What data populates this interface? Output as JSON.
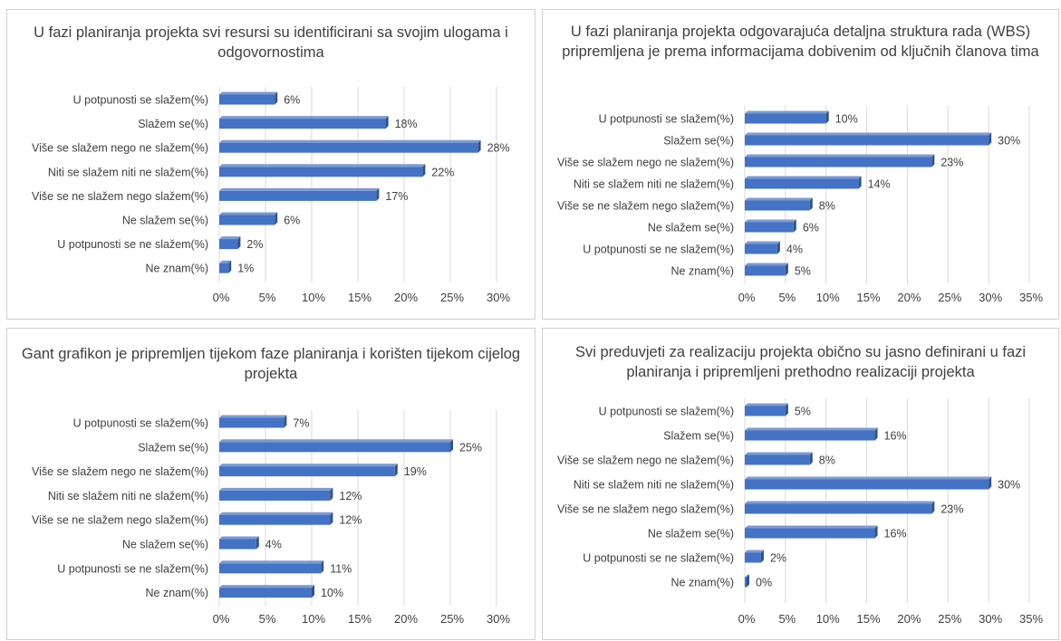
{
  "colors": {
    "bar_front": "#4472c4",
    "bar_top": "#7b9bd6",
    "bar_side": "#2f528f",
    "grid": "#d9d9d9",
    "text": "#404040"
  },
  "chart_data": [
    {
      "type": "bar",
      "orientation": "horizontal",
      "title": "U fazi planiranja projekta svi resursi su identificirani sa svojim ulogama i odgovornostima",
      "categories": [
        "U potpunosti se slažem(%)",
        "Slažem se(%)",
        "Više se slažem nego ne slažem(%)",
        "Niti se slažem niti ne slažem(%)",
        "Više se ne slažem nego slažem(%)",
        "Ne slažem se(%)",
        "U potpunosti se ne slažem(%)",
        "Ne znam(%)"
      ],
      "values": [
        6,
        18,
        28,
        22,
        17,
        6,
        2,
        1
      ],
      "value_labels": [
        "6%",
        "18%",
        "28%",
        "22%",
        "17%",
        "6%",
        "2%",
        "1%"
      ],
      "xlim": [
        0,
        30
      ],
      "ticks": [
        "0%",
        "5%",
        "10%",
        "15%",
        "20%",
        "25%",
        "30%"
      ],
      "grid": true
    },
    {
      "type": "bar",
      "orientation": "horizontal",
      "title": "U fazi planiranja projekta odgovarajuća detaljna struktura rada (WBS) pripremljena je prema informacijama dobivenim od ključnih članova tima",
      "categories": [
        "U potpunosti se slažem(%)",
        "Slažem se(%)",
        "Više se slažem nego ne slažem(%)",
        "Niti se slažem niti ne slažem(%)",
        "Više se ne slažem nego slažem(%)",
        "Ne slažem se(%)",
        "U potpunosti se ne slažem(%)",
        "Ne znam(%)"
      ],
      "values": [
        10,
        30,
        23,
        14,
        8,
        6,
        4,
        5
      ],
      "value_labels": [
        "10%",
        "30%",
        "23%",
        "14%",
        "8%",
        "6%",
        "4%",
        "5%"
      ],
      "xlim": [
        0,
        35
      ],
      "ticks": [
        "0%",
        "5%",
        "10%",
        "15%",
        "20%",
        "25%",
        "30%",
        "35%"
      ],
      "grid": true
    },
    {
      "type": "bar",
      "orientation": "horizontal",
      "title": "Gant grafikon je pripremljen tijekom faze planiranja i korišten tijekom cijelog projekta",
      "categories": [
        "U potpunosti se slažem(%)",
        "Slažem se(%)",
        "Više se slažem nego ne slažem(%)",
        "Niti se slažem niti ne slažem(%)",
        "Više se ne slažem nego slažem(%)",
        "Ne slažem se(%)",
        "U potpunosti se ne slažem(%)",
        "Ne znam(%)"
      ],
      "values": [
        7,
        25,
        19,
        12,
        12,
        4,
        11,
        10
      ],
      "value_labels": [
        "7%",
        "25%",
        "19%",
        "12%",
        "12%",
        "4%",
        "11%",
        "10%"
      ],
      "xlim": [
        0,
        30
      ],
      "ticks": [
        "0%",
        "5%",
        "10%",
        "15%",
        "20%",
        "25%",
        "30%"
      ],
      "grid": true
    },
    {
      "type": "bar",
      "orientation": "horizontal",
      "title": "Svi preduvjeti za realizaciju projekta obično su jasno definirani u fazi planiranja i pripremljeni prethodno realizaciji projekta",
      "categories": [
        "U potpunosti se slažem(%)",
        "Slažem se(%)",
        "Više se slažem nego ne slažem(%)",
        "Niti se slažem niti ne slažem(%)",
        "Više se ne slažem nego slažem(%)",
        "Ne slažem se(%)",
        "U potpunosti se ne slažem(%)",
        "Ne znam(%)"
      ],
      "values": [
        5,
        16,
        8,
        30,
        23,
        16,
        2,
        0
      ],
      "value_labels": [
        "5%",
        "16%",
        "8%",
        "30%",
        "23%",
        "16%",
        "2%",
        "0%"
      ],
      "xlim": [
        0,
        35
      ],
      "ticks": [
        "0%",
        "5%",
        "10%",
        "15%",
        "20%",
        "25%",
        "30%",
        "35%"
      ],
      "grid": true
    }
  ]
}
